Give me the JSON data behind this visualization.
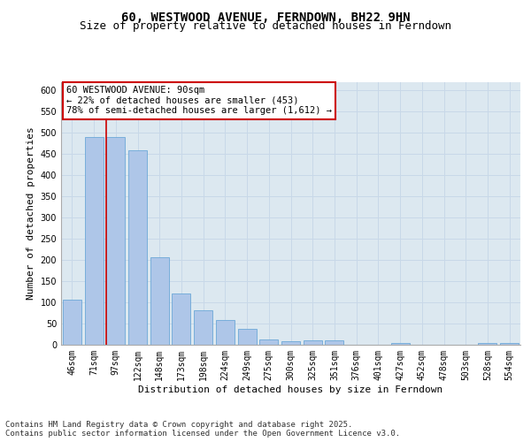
{
  "title": "60, WESTWOOD AVENUE, FERNDOWN, BH22 9HN",
  "subtitle": "Size of property relative to detached houses in Ferndown",
  "xlabel": "Distribution of detached houses by size in Ferndown",
  "ylabel": "Number of detached properties",
  "categories": [
    "46sqm",
    "71sqm",
    "97sqm",
    "122sqm",
    "148sqm",
    "173sqm",
    "198sqm",
    "224sqm",
    "249sqm",
    "275sqm",
    "300sqm",
    "325sqm",
    "351sqm",
    "376sqm",
    "401sqm",
    "427sqm",
    "452sqm",
    "478sqm",
    "503sqm",
    "528sqm",
    "554sqm"
  ],
  "values": [
    106,
    490,
    490,
    458,
    207,
    120,
    82,
    58,
    38,
    13,
    8,
    10,
    10,
    0,
    0,
    5,
    0,
    0,
    0,
    5,
    5
  ],
  "bar_color": "#aec6e8",
  "bar_edge_color": "#5a9fd4",
  "grid_color": "#c8d8e8",
  "background_color": "#dce8f0",
  "vline_x_index": 2,
  "vline_color": "#cc0000",
  "annotation_text": "60 WESTWOOD AVENUE: 90sqm\n← 22% of detached houses are smaller (453)\n78% of semi-detached houses are larger (1,612) →",
  "annotation_box_facecolor": "#ffffff",
  "annotation_box_edgecolor": "#cc0000",
  "footer_text": "Contains HM Land Registry data © Crown copyright and database right 2025.\nContains public sector information licensed under the Open Government Licence v3.0.",
  "ylim": [
    0,
    620
  ],
  "yticks": [
    0,
    50,
    100,
    150,
    200,
    250,
    300,
    350,
    400,
    450,
    500,
    550,
    600
  ],
  "title_fontsize": 10,
  "subtitle_fontsize": 9,
  "axis_label_fontsize": 8,
  "tick_fontsize": 7,
  "annotation_fontsize": 7.5,
  "footer_fontsize": 6.5
}
